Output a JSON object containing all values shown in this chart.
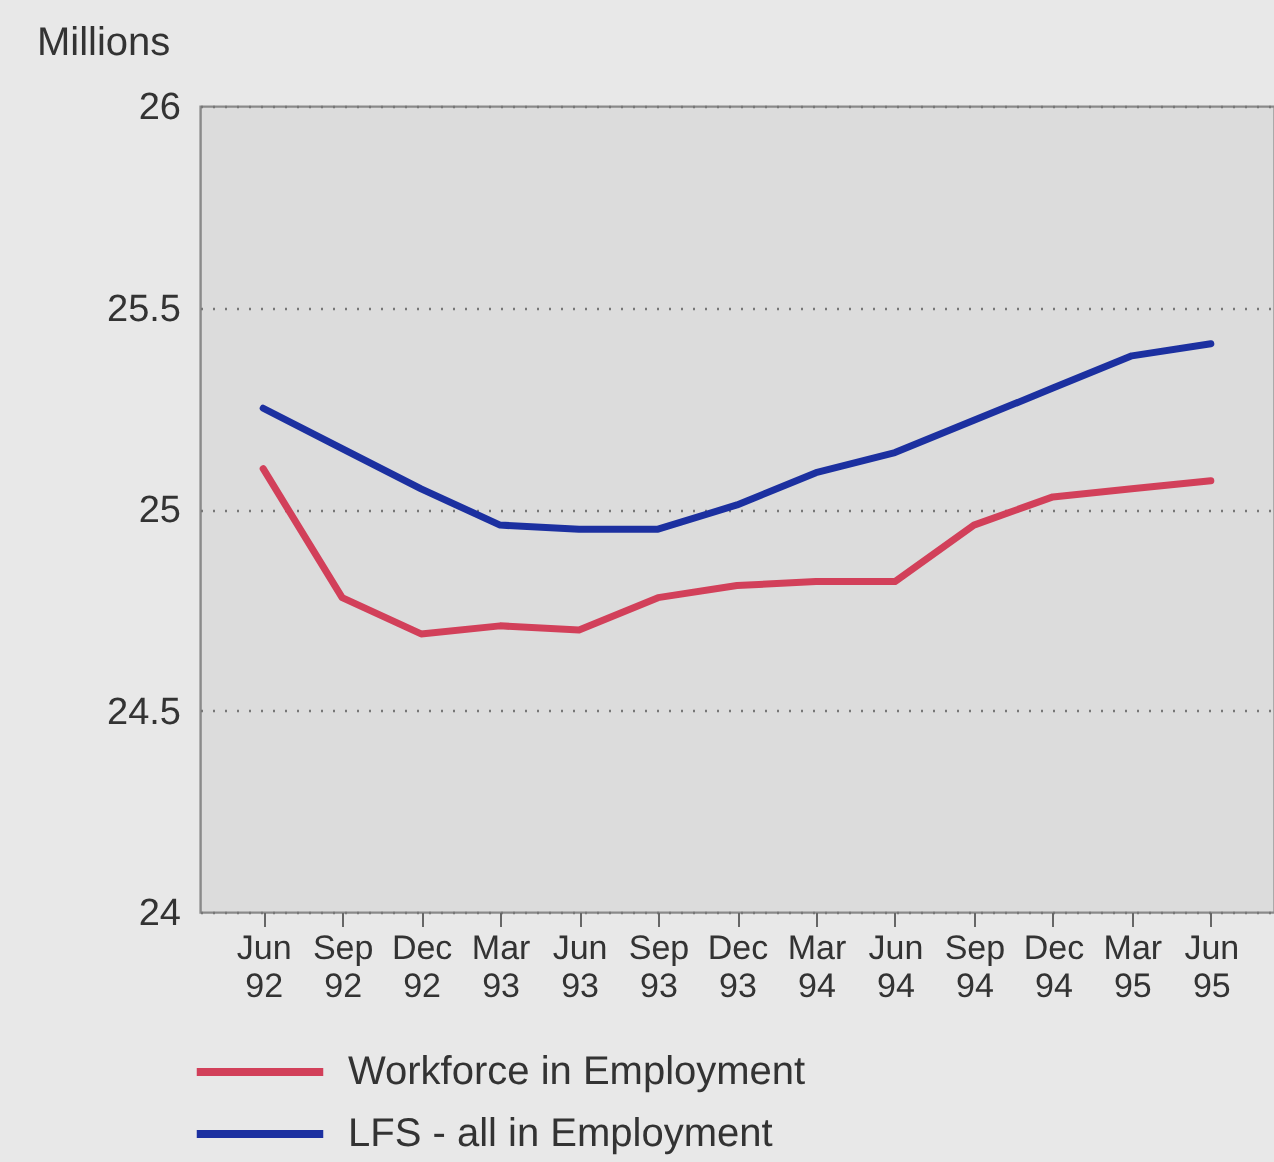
{
  "chart_data": {
    "type": "line",
    "ylabel": "Millions",
    "categories": [
      "Jun 92",
      "Sep 92",
      "Dec 92",
      "Mar 93",
      "Jun 93",
      "Sep 93",
      "Dec 93",
      "Mar 94",
      "Jun 94",
      "Sep 94",
      "Dec 94",
      "Mar 95",
      "Jun 95"
    ],
    "series": [
      {
        "name": "Workforce in Employment",
        "color": "#d2405a",
        "values": [
          25.1,
          24.78,
          24.69,
          24.71,
          24.7,
          24.78,
          24.81,
          24.82,
          24.82,
          24.96,
          25.03,
          25.05,
          25.07
        ]
      },
      {
        "name": "LFS - all in Employment",
        "color": "#1c30a0",
        "values": [
          25.25,
          25.15,
          25.05,
          24.96,
          24.95,
          24.95,
          25.01,
          25.09,
          25.14,
          25.22,
          25.3,
          25.38,
          25.41
        ]
      }
    ],
    "ylim": [
      24,
      26
    ],
    "yticks": [
      24,
      24.5,
      25,
      25.5,
      26
    ],
    "grid": "y",
    "legend": "bottom",
    "line_style": "solid"
  }
}
